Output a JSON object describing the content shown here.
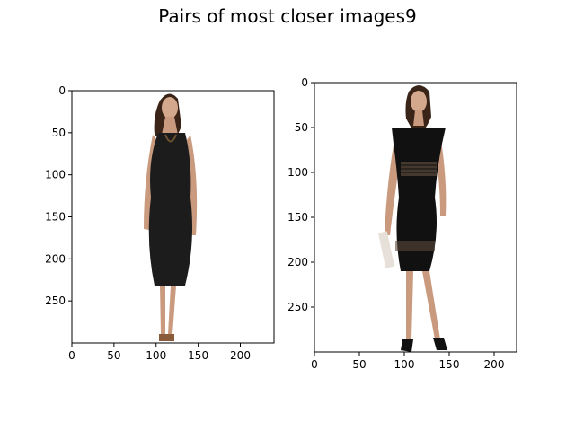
{
  "figure": {
    "title": "Pairs of most closer images9"
  },
  "panels": [
    {
      "name": "left-image",
      "x_ticks": [
        "0",
        "50",
        "100",
        "150",
        "200"
      ],
      "y_ticks": [
        "0",
        "50",
        "100",
        "150",
        "200",
        "250"
      ],
      "image_width": 240,
      "image_height": 300,
      "subject": "woman in sleeveless black knee-length dress with necklace and sandals"
    },
    {
      "name": "right-image",
      "x_ticks": [
        "0",
        "50",
        "100",
        "150",
        "200"
      ],
      "y_ticks": [
        "0",
        "50",
        "100",
        "150",
        "200",
        "250"
      ],
      "image_width": 225,
      "image_height": 300,
      "subject": "woman in cap-sleeve black dress with sheer panels and black heels"
    }
  ],
  "colors": {
    "dress": "#1c1c1c",
    "skin": "#c99a7e",
    "hair": "#3a2418",
    "frame": "#000000"
  }
}
